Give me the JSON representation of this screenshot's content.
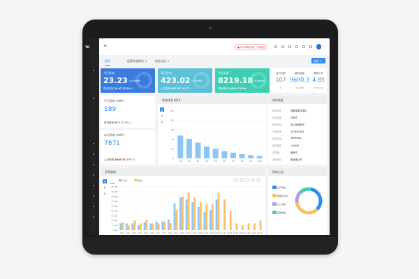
{
  "sidebar": {
    "logo": "YD"
  },
  "header": {
    "alert": "● 2019年12月 · 1月9日",
    "icons": [
      "settings-icon",
      "user-icon",
      "lock-icon",
      "trash-icon",
      "moon-icon",
      "fullscreen-icon"
    ]
  },
  "tabs": [
    {
      "label": "首页"
    },
    {
      "label": "运营状态概况 ×"
    },
    {
      "label": "电站分析 ×"
    }
  ],
  "select_button": "选择 ▾",
  "kpi": [
    {
      "title": "今日发电",
      "value": "23.23",
      "unit": "kWh发电量",
      "sub_label": "昨日发电",
      "sub_value": "26.47",
      "pct": "12.3% ↓",
      "color": "#3a7be0"
    },
    {
      "title": "本月发电",
      "value": "423.02",
      "unit": "kWh发电量",
      "sub_label": "上月发电",
      "sub_value": "467.93",
      "pct": "16.27 ↓",
      "color": "#5bc0d8"
    },
    {
      "title": "总发电量",
      "value": "8219.18",
      "unit": "kWh发电量",
      "sub_label": "同比增长",
      "sub_value": "4.89%",
      "pct": "12.9%",
      "color": "#3ecfb2"
    }
  ],
  "stats": [
    {
      "label": "运行天数",
      "value": "107",
      "sub": "天"
    },
    {
      "label": "装机容量",
      "value": "9690.3",
      "sub": "kWp装机"
    },
    {
      "label": "满发小时",
      "value": "4.85",
      "sub": "kWh/kWp"
    }
  ],
  "left_cards": [
    {
      "title": "今日用电 (kWh)",
      "value": "189",
      "sub_label": "昨日用电",
      "sub_value": "217",
      "pct": "12.9% ↓",
      "pct_color": "#22b573"
    },
    {
      "title": "本月用电 (kWh)",
      "value": "7871",
      "sub_label": "上月用电",
      "sub_value": "3442",
      "pct": "56.27% ↑",
      "pct_color": "#e94040"
    }
  ],
  "bar_panel": {
    "title": "发电排名 前10",
    "side_tabs": [
      "日",
      "月",
      "年"
    ]
  },
  "info_panel": {
    "title": "电站信息",
    "rows": [
      {
        "k": "电站名称",
        "v": "成都某屋顶电站"
      },
      {
        "k": "电站类型",
        "v": "分布式"
      },
      {
        "k": "所在地区",
        "v": "四川省成都市"
      },
      {
        "k": "并网时间",
        "v": "2019年09月"
      },
      {
        "k": "装机容量",
        "v": "9690kWp"
      },
      {
        "k": "组件数量",
        "v": "1200块"
      },
      {
        "k": "逆变器",
        "v": "组串式"
      },
      {
        "k": "运维单位",
        "v": "某运维公司"
      }
    ]
  },
  "chart_data": [
    {
      "type": "bar",
      "title": "发电排名 前10",
      "categories": [
        "1#",
        "2#",
        "3#",
        "4#",
        "5#",
        "6#",
        "7#",
        "8#",
        "9#",
        "10#"
      ],
      "values": [
        48,
        41,
        33,
        25,
        20,
        15,
        12,
        9,
        7,
        5
      ],
      "ylim": [
        0,
        100
      ],
      "yticks": [
        0,
        20,
        40,
        60,
        80,
        100
      ],
      "color": "#8ec5f7",
      "grid": true
    },
    {
      "type": "bar",
      "title": "负荷曲线",
      "ylabel": "kWh",
      "legend": "top-left",
      "categories": [
        "0:00",
        "1:00",
        "2:00",
        "3:00",
        "4:00",
        "5:00",
        "6:00",
        "7:00",
        "8:00",
        "9:00",
        "10:00",
        "11:00",
        "12:00",
        "13:00",
        "14:00",
        "15:00",
        "16:00",
        "17:00",
        "18:00",
        "19:00",
        "20:00",
        "21:00",
        "22:00",
        "23:00"
      ],
      "series": [
        {
          "name": "今日",
          "color": "#8ec5f7",
          "values": [
            7,
            7,
            7,
            5,
            8.5,
            7,
            9,
            9,
            11,
            28,
            34,
            32,
            29,
            24,
            19,
            21,
            32,
            null,
            null,
            null,
            null,
            null,
            null,
            null
          ]
        },
        {
          "name": "昨日",
          "color": "#fbbf6a",
          "values": [
            8.5,
            5,
            10,
            7,
            11,
            7,
            7,
            9,
            7,
            21,
            35,
            39,
            34,
            29,
            27,
            27,
            39,
            32,
            20,
            7,
            5,
            7,
            7,
            10
          ]
        }
      ],
      "ylim": [
        0,
        45
      ],
      "yticks": [
        "0 kWh",
        "5 kWh",
        "10 kWh",
        "15 kWh",
        "20 kWh",
        "25 kWh",
        "30 kWh",
        "35 kWh",
        "40 kWh",
        "45 kWh"
      ],
      "grid": true
    },
    {
      "type": "pie",
      "title": "用电占比",
      "labels": [
        "生产用电",
        "照明及空调",
        "办公用电",
        "其他用电"
      ],
      "values": [
        35,
        35,
        15,
        15
      ],
      "colors": [
        "#2f8cf0",
        "#fbbf6a",
        "#b39ddb",
        "#3ecfb2"
      ]
    }
  ],
  "bottom_panel": {
    "title": "负荷曲线",
    "side_tabs": [
      "日",
      "月",
      "年"
    ],
    "toolbar": [
      "data-view-icon",
      "line-icon",
      "bar-icon",
      "restore-icon",
      "download-icon"
    ]
  },
  "donut_panel": {
    "title": "用电占比"
  }
}
